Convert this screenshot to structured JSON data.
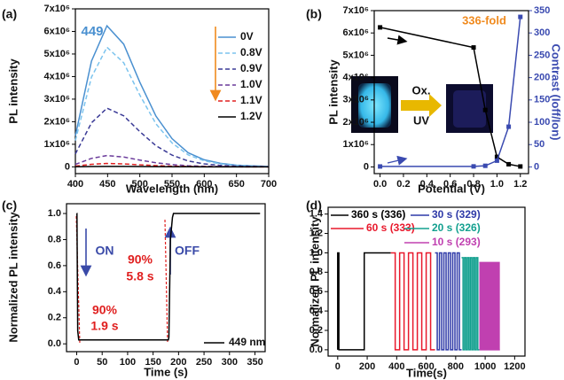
{
  "chart_data": [
    {
      "type": "line",
      "label": "(a)",
      "xlabel": "Wavelength (nm)",
      "ylabel": "PL intensity",
      "xlim": [
        400,
        700
      ],
      "ylim": [
        -300000,
        7000000
      ],
      "xticks": [
        400,
        450,
        500,
        550,
        600,
        650,
        700
      ],
      "yticks": [
        0,
        {
          "value": 1000000,
          "label": "1x10⁶"
        },
        {
          "value": 2000000,
          "label": "2x10⁶"
        },
        {
          "value": 3000000,
          "label": "3x10⁶"
        },
        {
          "value": 4000000,
          "label": "4x10⁶"
        },
        {
          "value": 5000000,
          "label": "5x10⁶"
        },
        {
          "value": 6000000,
          "label": "6x10⁶"
        },
        {
          "value": 7000000,
          "label": "7x10⁶"
        }
      ],
      "annotations": [
        "449"
      ],
      "x": [
        400,
        425,
        449,
        475,
        500,
        525,
        550,
        575,
        600,
        625,
        650,
        700
      ],
      "series": [
        {
          "name": "0V",
          "color": "#4a90d0",
          "dashed": false,
          "values": [
            1375000,
            4687500,
            6250000,
            5437500,
            3750000,
            2250000,
            1250000,
            625000,
            312500,
            156250,
            75000,
            18750
          ]
        },
        {
          "name": "0.8V",
          "color": "#7cc4ee",
          "dashed": true,
          "values": [
            1166000,
            3975000,
            5300000,
            4611000,
            3180000,
            1908000,
            1060000,
            530000,
            265000,
            132500,
            63600,
            15900
          ]
        },
        {
          "name": "0.9V",
          "color": "#3a3a96",
          "dashed": true,
          "values": [
            572000,
            1950000,
            2600000,
            2262000,
            1560000,
            936000,
            520000,
            260000,
            130000,
            65000,
            31200,
            7800
          ]
        },
        {
          "name": "1.0V",
          "color": "#6a3a9a",
          "dashed": true,
          "values": [
            110000,
            375000,
            500000,
            435000,
            300000,
            180000,
            100000,
            50000,
            25000,
            12500,
            6000,
            1500
          ]
        },
        {
          "name": "1.1V",
          "color": "#e02020",
          "dashed": true,
          "values": [
            33000,
            112500,
            150000,
            130500,
            90000,
            54000,
            30000,
            15000,
            7500,
            3750,
            1800,
            450
          ]
        },
        {
          "name": "1.2V",
          "color": "#000000",
          "dashed": false,
          "values": [
            4400,
            15000,
            20000,
            17400,
            12000,
            7200,
            4000,
            2000,
            1000,
            500,
            240,
            60
          ]
        }
      ]
    },
    {
      "type": "line",
      "label": "(b)",
      "xlabel": "Potential (V)",
      "ylabel": "PL intensity",
      "y2label": "Contrast (Ioff/Ion)",
      "xlim": [
        -0.05,
        1.27
      ],
      "ylim": [
        -300000,
        7000000
      ],
      "y2lim": [
        -15,
        350
      ],
      "xticks": [
        {
          "value": 0,
          "label": "0.0"
        },
        0.2,
        0.4,
        0.6,
        0.8,
        {
          "value": 1,
          "label": "1.0"
        },
        1.2
      ],
      "yticks": [
        0,
        {
          "value": 1000000,
          "label": "1x10⁶"
        },
        {
          "value": 2000000,
          "label": "2x10⁶"
        },
        {
          "value": 3000000,
          "label": "3x10⁶"
        },
        {
          "value": 4000000,
          "label": "4x10⁶"
        },
        {
          "value": 5000000,
          "label": "5x10⁶"
        },
        {
          "value": 6000000,
          "label": "6x10⁶"
        },
        {
          "value": 7000000,
          "label": "7x10⁶"
        }
      ],
      "y2ticks": [
        0,
        50,
        100,
        150,
        200,
        250,
        300,
        350
      ],
      "annotations": [
        "336-fold",
        "Ox.",
        "UV"
      ],
      "x": [
        0,
        0.8,
        0.9,
        1,
        1.1,
        1.2
      ],
      "series": [
        {
          "color": "#000000",
          "markers": true,
          "values": [
            6250000,
            5350000,
            2550000,
            450000,
            120000,
            20000
          ]
        },
        {
          "color": "#3a4ab0",
          "markers": true,
          "axis": "y2",
          "values": [
            1,
            1.2,
            2.5,
            14,
            90,
            336
          ]
        }
      ]
    },
    {
      "type": "line",
      "label": "(c)",
      "xlabel": "Time (s)",
      "ylabel": "Normalized PL intensity",
      "xlim": [
        -20,
        370
      ],
      "ylim": [
        -0.06,
        1.075
      ],
      "xticks": [
        0,
        50,
        100,
        150,
        200,
        250,
        300,
        350
      ],
      "yticks": [
        {
          "value": 0,
          "label": "0.0"
        },
        0.2,
        0.4,
        0.6,
        0.8,
        {
          "value": 1,
          "label": "1.0"
        }
      ],
      "annotations": [
        "ON",
        "OFF",
        "90%",
        "1.9 s",
        "90%",
        "5.8 s"
      ],
      "x": [
        0,
        0.5,
        2,
        4,
        180,
        181,
        184,
        188,
        190,
        360
      ],
      "series": [
        {
          "name": "449 nm",
          "color": "#000000",
          "values": [
            1,
            1,
            0.1,
            0.03,
            0.03,
            0.05,
            0.8,
            0.97,
            1,
            1
          ]
        }
      ]
    },
    {
      "type": "line",
      "label": "(d)",
      "xlabel": "Time(s)",
      "ylabel": "Normalized PL intensity",
      "xlim": [
        -65,
        1270
      ],
      "ylim": [
        -0.065,
        1.47
      ],
      "xticks": [
        0,
        200,
        400,
        600,
        800,
        1000,
        1200
      ],
      "yticks": [
        {
          "value": 0,
          "label": "0.0"
        },
        0.2,
        0.4,
        0.6,
        0.8,
        {
          "value": 1,
          "label": "1.0"
        },
        1.2,
        1.4
      ],
      "series": [
        {
          "name": "360 s (336)",
          "color": "#000000",
          "x": [
            0,
            0,
            8,
            8,
            180,
            180,
            360
          ],
          "values": [
            0,
            1,
            1,
            0,
            0,
            1,
            1
          ]
        },
        {
          "name": "60 s (333)",
          "color": "#e8192c",
          "x": [
            360,
            390,
            390,
            420,
            420,
            450,
            450,
            480,
            480,
            510,
            510,
            540,
            540,
            570,
            570,
            600,
            600,
            630,
            630,
            660
          ],
          "values": [
            1,
            1,
            0,
            0,
            1,
            1,
            0,
            0,
            1,
            1,
            0,
            0,
            1,
            1,
            0,
            0,
            1,
            1,
            0,
            0
          ]
        },
        {
          "name": "30 s (329)",
          "color": "#2f3aa8",
          "x": [
            660,
            675,
            675,
            690,
            690,
            705,
            705,
            720,
            720,
            735,
            735,
            750,
            750,
            765,
            765,
            780,
            780,
            795,
            795,
            810,
            810,
            825,
            825,
            840
          ],
          "values": [
            1,
            1,
            0,
            0,
            1,
            1,
            0,
            0,
            1,
            1,
            0,
            0,
            1,
            1,
            0,
            0,
            1,
            1,
            0,
            0,
            1,
            1,
            0,
            0
          ]
        },
        {
          "name": "20 s (326)",
          "color": "#13a08f",
          "x": [
            840,
            850,
            850,
            860,
            860,
            870,
            870,
            880,
            880,
            890,
            890,
            900,
            900,
            910,
            910,
            920,
            920,
            930,
            930,
            940,
            940,
            950,
            950,
            960
          ],
          "values": [
            0.95,
            0.95,
            0,
            0,
            0.95,
            0.95,
            0,
            0,
            0.95,
            0.95,
            0,
            0,
            0.95,
            0.95,
            0,
            0,
            0.95,
            0.95,
            0,
            0,
            0.95,
            0.95,
            0,
            0
          ]
        },
        {
          "name": "10 s (293)",
          "color": "#c040b0",
          "x": [
            960,
            965,
            965,
            970,
            970,
            975,
            975,
            980,
            980,
            985,
            985,
            990,
            990,
            995,
            995,
            1000,
            1000,
            1005,
            1005,
            1010,
            1010,
            1015,
            1015,
            1020,
            1020,
            1025,
            1025,
            1030,
            1030,
            1035,
            1035,
            1040,
            1040,
            1045,
            1045,
            1050,
            1050,
            1055,
            1055,
            1060,
            1060,
            1065,
            1065,
            1070,
            1070,
            1075,
            1075,
            1080,
            1080,
            1085,
            1085,
            1090,
            1090,
            1095,
            1095,
            1100
          ],
          "values": [
            0.9,
            0.9,
            0,
            0,
            0.9,
            0.9,
            0,
            0,
            0.9,
            0.9,
            0,
            0,
            0.9,
            0.9,
            0,
            0,
            0.9,
            0.9,
            0,
            0,
            0.9,
            0.9,
            0,
            0,
            0.9,
            0.9,
            0,
            0,
            0.9,
            0.9,
            0,
            0,
            0.9,
            0.9,
            0,
            0,
            0.9,
            0.9,
            0,
            0,
            0.9,
            0.9,
            0,
            0,
            0.9,
            0.9,
            0,
            0,
            0.9,
            0.9,
            0,
            0,
            0.9,
            0.9,
            0,
            0
          ]
        }
      ]
    }
  ]
}
